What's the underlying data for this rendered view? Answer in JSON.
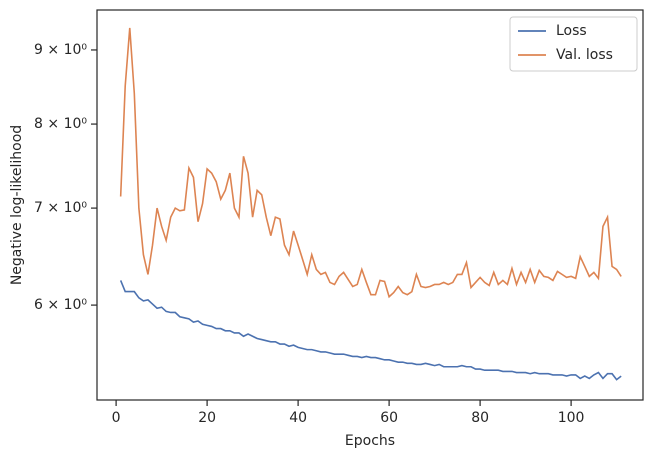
{
  "chart_data": {
    "type": "line",
    "xlabel": "Epochs",
    "ylabel": "Negative log-likelihood",
    "x": [
      1,
      2,
      3,
      4,
      5,
      6,
      7,
      8,
      9,
      10,
      11,
      12,
      13,
      14,
      15,
      16,
      17,
      18,
      19,
      20,
      21,
      22,
      23,
      24,
      25,
      26,
      27,
      28,
      29,
      30,
      31,
      32,
      33,
      34,
      35,
      36,
      37,
      38,
      39,
      40,
      41,
      42,
      43,
      44,
      45,
      46,
      47,
      48,
      49,
      50,
      51,
      52,
      53,
      54,
      55,
      56,
      57,
      58,
      59,
      60,
      61,
      62,
      63,
      64,
      65,
      66,
      67,
      68,
      69,
      70,
      71,
      72,
      73,
      74,
      75,
      76,
      77,
      78,
      79,
      80,
      81,
      82,
      83,
      84,
      85,
      86,
      87,
      88,
      89,
      90,
      91,
      92,
      93,
      94,
      95,
      96,
      97,
      98,
      99,
      100,
      101,
      102,
      103,
      104,
      105,
      106,
      107,
      108,
      109,
      110,
      111
    ],
    "series": [
      {
        "name": "Loss",
        "color": "#4c72b0",
        "values": [
          6.24,
          6.13,
          6.13,
          6.13,
          6.07,
          6.04,
          6.05,
          6.01,
          5.97,
          5.98,
          5.94,
          5.93,
          5.93,
          5.89,
          5.88,
          5.87,
          5.84,
          5.85,
          5.82,
          5.81,
          5.8,
          5.78,
          5.78,
          5.76,
          5.76,
          5.74,
          5.74,
          5.71,
          5.73,
          5.71,
          5.69,
          5.68,
          5.67,
          5.66,
          5.66,
          5.64,
          5.64,
          5.62,
          5.63,
          5.61,
          5.6,
          5.59,
          5.59,
          5.58,
          5.57,
          5.57,
          5.56,
          5.55,
          5.55,
          5.55,
          5.54,
          5.53,
          5.53,
          5.52,
          5.53,
          5.52,
          5.52,
          5.51,
          5.5,
          5.5,
          5.49,
          5.48,
          5.48,
          5.47,
          5.47,
          5.46,
          5.46,
          5.47,
          5.46,
          5.45,
          5.46,
          5.44,
          5.44,
          5.44,
          5.44,
          5.45,
          5.44,
          5.44,
          5.42,
          5.42,
          5.41,
          5.41,
          5.41,
          5.41,
          5.4,
          5.4,
          5.4,
          5.39,
          5.39,
          5.39,
          5.38,
          5.39,
          5.38,
          5.38,
          5.38,
          5.37,
          5.37,
          5.37,
          5.36,
          5.37,
          5.37,
          5.34,
          5.36,
          5.34,
          5.37,
          5.39,
          5.34,
          5.38,
          5.38,
          5.33,
          5.36
        ]
      },
      {
        "name": "Val. loss",
        "color": "#dd8452",
        "values": [
          7.13,
          8.5,
          9.32,
          8.4,
          7.0,
          6.5,
          6.3,
          6.6,
          7.0,
          6.8,
          6.65,
          6.9,
          7.0,
          6.97,
          6.98,
          7.46,
          7.35,
          6.85,
          7.05,
          7.45,
          7.4,
          7.3,
          7.1,
          7.2,
          7.4,
          7.0,
          6.9,
          7.6,
          7.4,
          6.9,
          7.2,
          7.15,
          6.9,
          6.7,
          6.9,
          6.88,
          6.6,
          6.5,
          6.75,
          6.6,
          6.45,
          6.3,
          6.5,
          6.35,
          6.3,
          6.32,
          6.22,
          6.2,
          6.28,
          6.32,
          6.25,
          6.18,
          6.2,
          6.35,
          6.22,
          6.1,
          6.1,
          6.24,
          6.23,
          6.08,
          6.12,
          6.18,
          6.12,
          6.1,
          6.13,
          6.3,
          6.18,
          6.17,
          6.18,
          6.2,
          6.2,
          6.22,
          6.2,
          6.22,
          6.3,
          6.3,
          6.42,
          6.17,
          6.22,
          6.27,
          6.22,
          6.19,
          6.32,
          6.2,
          6.24,
          6.2,
          6.36,
          6.2,
          6.32,
          6.22,
          6.35,
          6.22,
          6.34,
          6.28,
          6.27,
          6.24,
          6.33,
          6.3,
          6.27,
          6.28,
          6.26,
          6.48,
          6.38,
          6.28,
          6.32,
          6.26,
          6.8,
          6.9,
          6.38,
          6.35,
          6.28
        ]
      }
    ],
    "xlim": [
      -4.2,
      115.8
    ],
    "xticks": [
      0,
      20,
      40,
      60,
      80,
      100
    ],
    "ylim": [
      5.16,
      9.59
    ],
    "ylog": true,
    "yticks": [
      {
        "value": 6,
        "label": "6 × 10⁰"
      },
      {
        "value": 7,
        "label": "7 × 10⁰"
      },
      {
        "value": 8,
        "label": "8 × 10⁰"
      },
      {
        "value": 9,
        "label": "9 × 10⁰"
      }
    ],
    "grid": false,
    "legend": "upper right"
  }
}
